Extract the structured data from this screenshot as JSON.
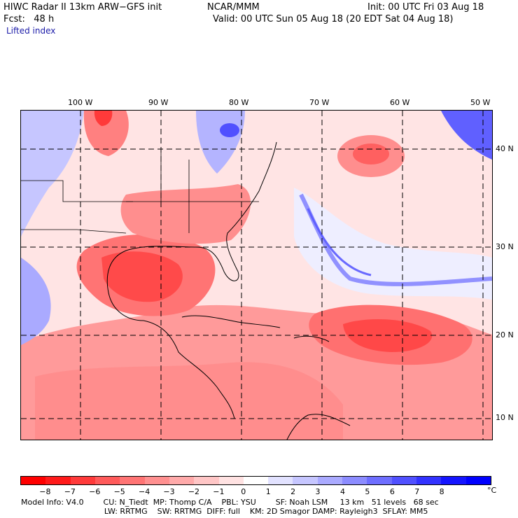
{
  "header": {
    "title": "HIWC Radar II 13km ARW−GFS init",
    "org": "NCAR/MMM",
    "init": "Init: 00 UTC Fri 03 Aug 18",
    "fcst": "Fcst:   48 h",
    "valid": "Valid: 00 UTC Sun 05 Aug 18 (20 EDT Sat 04 Aug 18)",
    "field": "Lifted index"
  },
  "map": {
    "lon_labels": [
      "100 W",
      "90 W",
      "80 W",
      "70 W",
      "60 W",
      "50 W"
    ],
    "lat_labels": [
      "40 N",
      "30 N",
      "20 N",
      "10 N"
    ],
    "lon_values": [
      -100,
      -90,
      -80,
      -70,
      -60,
      -50
    ],
    "lat_values": [
      40,
      30,
      20,
      10
    ]
  },
  "colorbar": {
    "tick_labels": [
      "−8",
      "−7",
      "−6",
      "−5",
      "−4",
      "−3",
      "−2",
      "−1",
      "0",
      "1",
      "2",
      "3",
      "4",
      "5",
      "6",
      "7",
      "8"
    ],
    "unit": "°C",
    "colors": [
      "#ff0000",
      "#ff1a1a",
      "#ff3a3a",
      "#ff5a5a",
      "#ff7474",
      "#ff9090",
      "#ffaaaa",
      "#ffc6c6",
      "#ffe2e2",
      "#ffffff",
      "#e2e2ff",
      "#c6c6ff",
      "#aaaaff",
      "#8c8cff",
      "#6e6eff",
      "#5050ff",
      "#3232ff",
      "#1414ff",
      "#0000ff"
    ]
  },
  "footer": {
    "line1": "Model Info: V4.0        CU: N_Tiedt  MP: Thomp C/A    PBL: YSU        SF: Noah LSM     13 km   51 levels   68 sec",
    "line2": "                                  LW: RRTMG    SW: RRTMG  DIFF: full    KM: 2D Smagor DAMP: Rayleigh3  SFLAY: MM5"
  }
}
